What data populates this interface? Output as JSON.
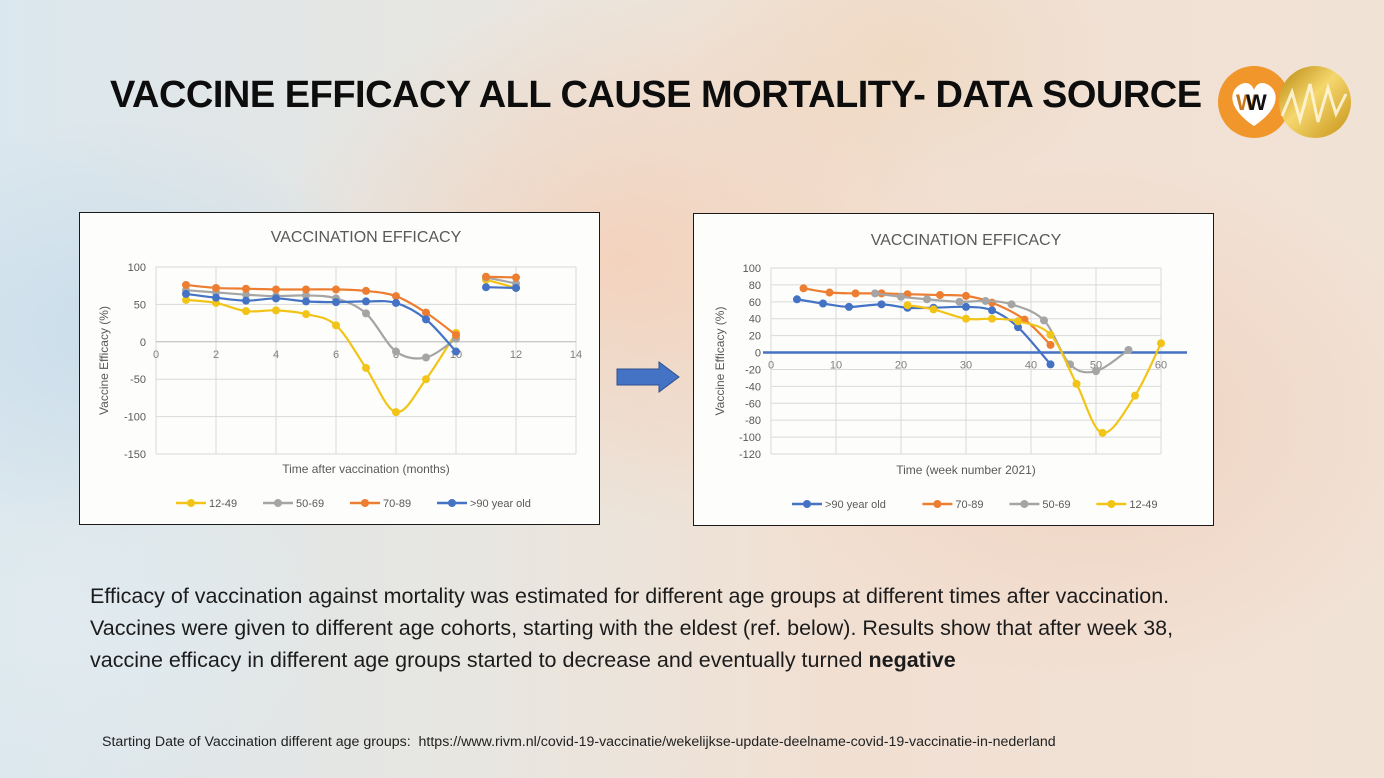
{
  "slide": {
    "title": "VACCINE EFFICACY ALL CAUSE MORTALITY- DATA SOURCE",
    "logo_text": "W",
    "body_text_main": "Efficacy of vaccination against mortality was estimated for different age groups at different times after vaccination. Vaccines were given to different age cohorts, starting with the eldest (ref. below). Results show that after week 38, vaccine efficacy in different age groups started to decrease and eventually turned ",
    "body_text_bold": "negative",
    "reference_label": "Starting Date of Vaccination different age groups:",
    "reference_url": "https://www.rivm.nl/covid-19-vaccinatie/wekelijkse-update-deelname-covid-19-vaccinatie-in-nederland",
    "colors": {
      "yellow": "#f2c418",
      "gray": "#a5a5a5",
      "orange": "#ed7d31",
      "blue": "#4472c4",
      "arrow": "#4472c4"
    }
  },
  "chart_data": [
    {
      "type": "line",
      "title": "VACCINATION EFFICACY",
      "xlabel": "Time after vaccination (months)",
      "ylabel": "Vaccine Efficacy (%)",
      "xlim": [
        0,
        14
      ],
      "ylim": [
        -150,
        100
      ],
      "xticks": [
        0,
        2,
        4,
        6,
        8,
        10,
        12,
        14
      ],
      "yticks": [
        100,
        50,
        0,
        -50,
        -100,
        -150
      ],
      "grid": true,
      "legend": "bottom",
      "series": [
        {
          "name": "12-49",
          "color": "#f2c418",
          "segments": [
            [
              [
                1,
                56
              ],
              [
                2,
                52
              ],
              [
                3,
                41
              ],
              [
                4,
                42
              ],
              [
                5,
                37
              ],
              [
                6,
                22
              ],
              [
                7,
                -35
              ],
              [
                8,
                -94
              ],
              [
                9,
                -50
              ],
              [
                10,
                12
              ]
            ],
            [
              [
                11,
                83
              ],
              [
                12,
                72
              ]
            ]
          ]
        },
        {
          "name": "50-69",
          "color": "#a5a5a5",
          "segments": [
            [
              [
                1,
                69
              ],
              [
                2,
                66
              ],
              [
                3,
                63
              ],
              [
                4,
                61
              ],
              [
                5,
                62
              ],
              [
                6,
                58
              ],
              [
                7,
                38
              ],
              [
                8,
                -13
              ],
              [
                9,
                -21
              ],
              [
                10,
                4
              ]
            ],
            [
              [
                11,
                86
              ],
              [
                12,
                78
              ]
            ]
          ]
        },
        {
          "name": "70-89",
          "color": "#ed7d31",
          "segments": [
            [
              [
                1,
                76
              ],
              [
                2,
                72
              ],
              [
                3,
                71
              ],
              [
                4,
                70
              ],
              [
                5,
                70
              ],
              [
                6,
                70
              ],
              [
                7,
                68
              ],
              [
                8,
                61
              ],
              [
                9,
                39
              ],
              [
                10,
                9
              ]
            ],
            [
              [
                11,
                87
              ],
              [
                12,
                86
              ]
            ]
          ]
        },
        {
          "name": ">90 year old",
          "color": "#4472c4",
          "segments": [
            [
              [
                1,
                64
              ],
              [
                2,
                59
              ],
              [
                3,
                55
              ],
              [
                4,
                58
              ],
              [
                5,
                54
              ],
              [
                6,
                53
              ],
              [
                7,
                54
              ],
              [
                8,
                52
              ],
              [
                9,
                30
              ],
              [
                10,
                -13
              ]
            ],
            [
              [
                11,
                73
              ],
              [
                12,
                72
              ]
            ]
          ]
        }
      ]
    },
    {
      "type": "line",
      "title": "VACCINATION EFFICACY",
      "xlabel": "Time (week number 2021)",
      "ylabel": "Vaccine Efficacy (%)",
      "xlim": [
        0,
        60
      ],
      "ylim": [
        -120,
        100
      ],
      "xticks": [
        0,
        10,
        20,
        30,
        40,
        50,
        60
      ],
      "yticks": [
        100,
        80,
        60,
        40,
        20,
        0,
        -20,
        -40,
        -60,
        -80,
        -100,
        -120
      ],
      "grid": true,
      "legend": "bottom",
      "series": [
        {
          "name": ">90 year old",
          "color": "#4472c4",
          "segments": [
            [
              [
                4,
                63
              ],
              [
                8,
                58
              ],
              [
                12,
                54
              ],
              [
                17,
                57
              ],
              [
                21,
                53
              ],
              [
                25,
                53
              ],
              [
                30,
                54
              ],
              [
                34,
                50
              ],
              [
                38,
                30
              ],
              [
                43,
                -14
              ]
            ]
          ]
        },
        {
          "name": "70-89",
          "color": "#ed7d31",
          "segments": [
            [
              [
                5,
                76
              ],
              [
                9,
                71
              ],
              [
                13,
                70
              ],
              [
                17,
                70
              ],
              [
                21,
                69
              ],
              [
                26,
                68
              ],
              [
                30,
                67
              ],
              [
                34,
                59
              ],
              [
                39,
                39
              ],
              [
                43,
                9
              ]
            ]
          ]
        },
        {
          "name": "50-69",
          "color": "#a5a5a5",
          "segments": [
            [
              [
                16,
                70
              ],
              [
                20,
                66
              ],
              [
                24,
                63
              ],
              [
                29,
                60
              ],
              [
                33,
                61
              ],
              [
                37,
                57
              ],
              [
                42,
                38
              ],
              [
                46,
                -14
              ],
              [
                50,
                -22
              ],
              [
                55,
                3
              ]
            ]
          ]
        },
        {
          "name": "12-49",
          "color": "#f2c418",
          "segments": [
            [
              [
                21,
                56
              ],
              [
                25,
                51
              ],
              [
                30,
                40
              ],
              [
                34,
                40
              ],
              [
                38,
                37
              ],
              [
                43,
                21
              ],
              [
                47,
                -37
              ],
              [
                51,
                -95
              ],
              [
                56,
                -51
              ],
              [
                60,
                11
              ]
            ]
          ]
        }
      ]
    }
  ]
}
